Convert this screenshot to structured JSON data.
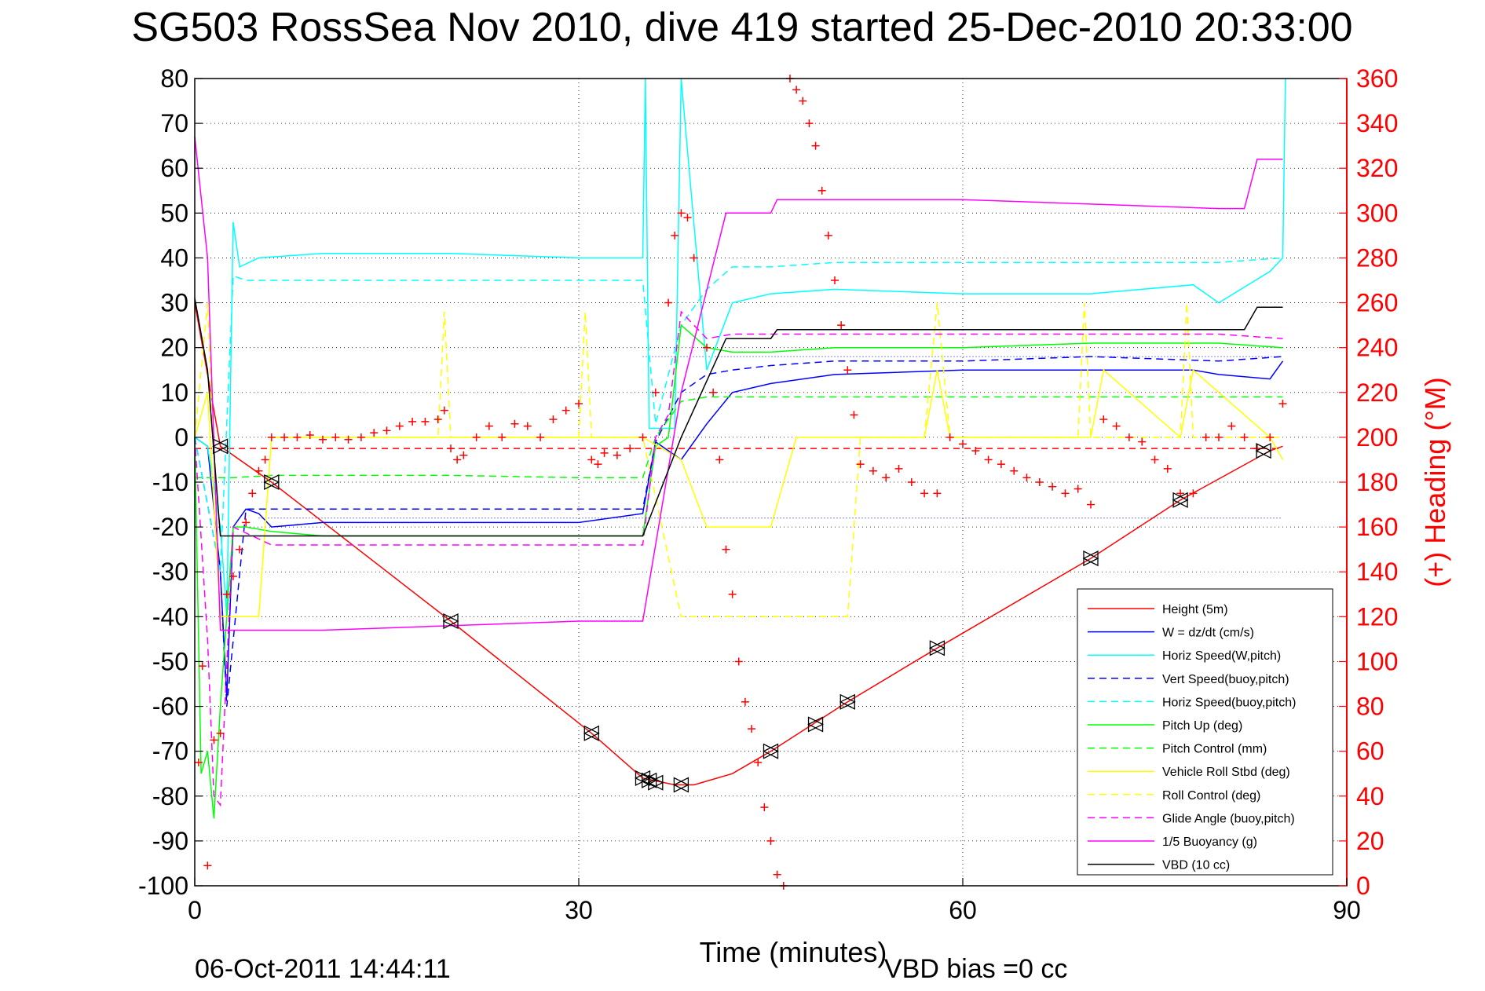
{
  "chart_data": {
    "type": "line",
    "title": "SG503 RossSea Nov 2010, dive 419 started 25-Dec-2010 20:33:00",
    "xlabel": "Time (minutes)",
    "ylabel_right": "(+) Heading (°M)",
    "xlim": [
      0,
      90
    ],
    "ylim_left": [
      -100,
      80
    ],
    "ylim_right": [
      0,
      360
    ],
    "x_ticks": [
      0,
      30,
      60,
      90
    ],
    "y_ticks_left": [
      80,
      70,
      60,
      50,
      40,
      30,
      20,
      10,
      0,
      -10,
      -20,
      -30,
      -40,
      -50,
      -60,
      -70,
      -80,
      -90,
      -100
    ],
    "y_ticks_right": [
      360,
      340,
      320,
      300,
      280,
      260,
      240,
      220,
      200,
      180,
      160,
      140,
      120,
      100,
      80,
      60,
      40,
      20,
      0
    ],
    "grid": "dotted",
    "legend_position": "bottom-right",
    "series": [
      {
        "name": "Height (5m)",
        "color": "#ff0000",
        "style": "solid",
        "x": [
          0,
          2,
          6,
          20,
          31,
          35,
          37.5,
          39,
          42,
          45,
          51,
          58,
          70,
          77,
          84,
          85
        ],
        "y": [
          30,
          -2,
          -10,
          -41,
          -66,
          -76,
          -77.5,
          -77.5,
          -75,
          -70,
          -59,
          -47,
          -27,
          -14,
          -3,
          -2
        ]
      },
      {
        "name": "W = dz/dt (cm/s)",
        "color": "#0000ff",
        "style": "solid",
        "x": [
          0,
          1,
          2,
          2.5,
          3,
          4,
          5,
          6,
          10,
          20,
          30,
          35,
          36,
          37,
          38,
          40,
          42,
          45,
          50,
          60,
          70,
          78,
          80,
          84,
          85
        ],
        "y": [
          0,
          -2,
          -30,
          -58,
          -20,
          -16,
          -17,
          -20,
          -19,
          -19,
          -19,
          -17,
          -1,
          -3,
          -5,
          3,
          10,
          12,
          14,
          15,
          15,
          15,
          14,
          13,
          17
        ]
      },
      {
        "name": "Horiz Speed(W,pitch)",
        "color": "#00ffff",
        "style": "solid",
        "x": [
          0,
          1,
          2,
          2.5,
          3,
          3.5,
          5,
          10,
          20,
          30,
          35,
          35.2,
          35.5,
          36.5,
          37.5,
          38,
          40,
          42,
          45,
          50,
          60,
          70,
          78,
          80,
          84,
          85,
          85.2
        ],
        "y": [
          0,
          -2,
          -20,
          -40,
          48,
          38,
          40,
          41,
          41,
          40,
          40,
          80,
          2,
          2,
          2,
          80,
          15,
          30,
          32,
          33,
          32,
          32,
          34,
          30,
          37,
          40,
          80
        ]
      },
      {
        "name": "Vert Speed(buoy,pitch)",
        "color": "#0000ff",
        "style": "dashed",
        "x": [
          0,
          2,
          2.5,
          4,
          10,
          20,
          30,
          35,
          36,
          38,
          40,
          42,
          45,
          50,
          60,
          70,
          80,
          85
        ],
        "y": [
          0,
          -30,
          -60,
          -16,
          -16,
          -16,
          -16,
          -16,
          -1,
          10,
          14,
          15,
          16,
          17,
          17,
          18,
          17,
          18
        ]
      },
      {
        "name": "Horiz Speed(buoy,pitch)",
        "color": "#00ffff",
        "style": "dashed",
        "x": [
          0,
          2,
          3,
          4,
          10,
          20,
          30,
          35,
          36,
          38,
          40,
          42,
          45,
          50,
          60,
          70,
          80,
          85
        ],
        "y": [
          0,
          -30,
          36,
          35,
          35,
          35,
          35,
          35,
          3,
          25,
          33,
          38,
          38,
          39,
          39,
          39,
          39,
          40
        ]
      },
      {
        "name": "Pitch Up (deg)",
        "color": "#00ff00",
        "style": "solid",
        "x": [
          0,
          0.5,
          1,
          1.5,
          2,
          3,
          4,
          6,
          10,
          20,
          30,
          35,
          36,
          37,
          38,
          40,
          42,
          45,
          50,
          60,
          70,
          80,
          85
        ],
        "y": [
          0,
          -75,
          -70,
          -85,
          -60,
          -20,
          -20,
          -21,
          -22,
          -22,
          -22,
          -22,
          -2,
          0,
          25,
          20,
          19,
          19,
          20,
          20,
          21,
          21,
          20
        ]
      },
      {
        "name": "Pitch Control (mm)",
        "color": "#00ff00",
        "style": "dashed",
        "x": [
          0,
          2,
          3,
          6,
          10,
          20,
          30,
          35,
          36,
          38,
          40,
          42,
          45,
          50,
          60,
          70,
          80,
          85
        ],
        "y": [
          -9,
          -9,
          -9,
          -8.5,
          -8.5,
          -8.5,
          -9,
          -9,
          0,
          8,
          9,
          9,
          9,
          9,
          9,
          9,
          9,
          9
        ]
      },
      {
        "name": "Vehicle Roll Stbd (deg)",
        "color": "#ffff00",
        "style": "solid",
        "x": [
          0,
          1,
          2,
          5,
          6,
          10,
          30,
          35,
          38,
          40,
          42,
          45,
          47,
          48,
          51,
          52,
          57,
          58,
          59,
          70,
          71,
          77,
          78,
          84,
          85
        ],
        "y": [
          0,
          10,
          -40,
          -40,
          0,
          0,
          0,
          0,
          -5,
          -20,
          -20,
          -20,
          0,
          0,
          0,
          0,
          0,
          15,
          0,
          0,
          15,
          0,
          15,
          0,
          -5
        ]
      },
      {
        "name": "Roll Control (deg)",
        "color": "#ffff00",
        "style": "dashed",
        "x": [
          0,
          1,
          2,
          5,
          6,
          19,
          19.5,
          20,
          30,
          30.5,
          31,
          35,
          38,
          40,
          42,
          45,
          48,
          49,
          51,
          52,
          57,
          58,
          59,
          69,
          69.5,
          70,
          77,
          77.5,
          78,
          84,
          85
        ],
        "y": [
          0,
          30,
          -40,
          -40,
          0,
          0,
          28,
          0,
          0,
          28,
          0,
          0,
          -40,
          -40,
          -40,
          -40,
          -40,
          -40,
          -40,
          0,
          0,
          30,
          0,
          0,
          30,
          0,
          0,
          30,
          0,
          0,
          0
        ]
      },
      {
        "name": "Glide Angle (buoy,pitch)",
        "color": "#ff00ff",
        "style": "dashed",
        "x": [
          0,
          1,
          1.5,
          2,
          3,
          6,
          10,
          20,
          30,
          35,
          36,
          37,
          38,
          40,
          42,
          45,
          50,
          60,
          70,
          80,
          85
        ],
        "y": [
          0,
          -45,
          -80,
          -82,
          -20,
          -24,
          -24,
          -24,
          -24,
          -24,
          0,
          5,
          28,
          22,
          23,
          23,
          23,
          23,
          23,
          23,
          22
        ]
      },
      {
        "name": "1/5 Buoyancy (g)",
        "color": "#ff00ff",
        "style": "solid",
        "x": [
          0,
          1,
          2,
          5,
          10,
          20,
          30,
          35,
          38,
          41.5,
          45,
          45.5,
          50,
          60,
          70,
          80,
          82,
          83,
          85
        ],
        "y": [
          67,
          40,
          -43,
          -43,
          -43,
          -42,
          -41,
          -41,
          10,
          50,
          50,
          53,
          53,
          53,
          52,
          51,
          51,
          62,
          62
        ]
      },
      {
        "name": "VBD (10 cc)",
        "color": "#000000",
        "style": "solid",
        "x": [
          0,
          1,
          2,
          3,
          10,
          20,
          30,
          35,
          38,
          41.5,
          45,
          45.5,
          50,
          60,
          70,
          80,
          82,
          83,
          85
        ],
        "y": [
          31,
          15,
          -22,
          -22,
          -22,
          -22,
          -22,
          -22,
          0,
          22,
          22,
          24,
          24,
          24,
          24,
          24,
          24,
          29,
          29
        ]
      }
    ],
    "heading_points": {
      "name": "(+) Heading",
      "color": "#ff0000",
      "marker": "+",
      "x": [
        0.3,
        0.6,
        1.0,
        1.5,
        2.0,
        2.5,
        3.0,
        3.5,
        4.0,
        4.5,
        5.0,
        5.5,
        6.0,
        7,
        8,
        9,
        10,
        11,
        12,
        13,
        14,
        15,
        16,
        17,
        18,
        19,
        19.5,
        20,
        20.5,
        21,
        22,
        23,
        24,
        25,
        26,
        27,
        28,
        29,
        30,
        31,
        31.5,
        32,
        33,
        34,
        35,
        36,
        37,
        37.5,
        38,
        38.5,
        39,
        40,
        40.5,
        41,
        41.5,
        42,
        42.5,
        43,
        43.5,
        44,
        44.5,
        45,
        45.5,
        46,
        46.5,
        47,
        47.5,
        48,
        48.5,
        49,
        49.5,
        50,
        50.5,
        51,
        51.5,
        52,
        53,
        54,
        55,
        56,
        57,
        58,
        59,
        60,
        61,
        62,
        63,
        64,
        65,
        66,
        67,
        68,
        69,
        70,
        71,
        72,
        73,
        74,
        75,
        76,
        77,
        78,
        79,
        80,
        81,
        82,
        83,
        84,
        85
      ],
      "y": [
        55,
        98,
        9,
        65,
        68,
        130,
        138,
        150,
        162,
        175,
        185,
        190,
        200,
        200,
        200,
        201,
        199,
        200,
        199,
        200,
        202,
        203,
        205,
        207,
        207,
        208,
        212,
        195,
        190,
        192,
        200,
        205,
        200,
        206,
        205,
        200,
        208,
        212,
        215,
        190,
        188,
        193,
        192,
        195,
        200,
        220,
        260,
        290,
        300,
        298,
        280,
        240,
        220,
        190,
        150,
        130,
        100,
        82,
        70,
        55,
        35,
        20,
        5,
        0,
        360,
        355,
        350,
        340,
        330,
        310,
        290,
        270,
        250,
        230,
        210,
        188,
        185,
        182,
        186,
        180,
        175,
        175,
        200,
        197,
        194,
        190,
        188,
        185,
        182,
        180,
        178,
        175,
        177,
        170,
        208,
        205,
        200,
        198,
        190,
        186,
        175,
        175,
        200,
        200,
        205,
        200,
        195,
        200,
        215
      ]
    },
    "zero_reference": {
      "color": "#ff0000",
      "style": "dashed",
      "y": -2.5
    },
    "triangle_markers": {
      "x": [
        2,
        6,
        20,
        31,
        35,
        35.5,
        36,
        38,
        45,
        48.5,
        51,
        58,
        70,
        77,
        83.5
      ],
      "y": [
        -2,
        -10,
        -41,
        -66,
        -76,
        -76.5,
        -77,
        -77.5,
        -70,
        -64,
        -59,
        -47,
        -27,
        -14,
        -3
      ]
    },
    "footer_left": "06-Oct-2011 14:44:11",
    "footer_right": "VBD bias =0 cc"
  }
}
